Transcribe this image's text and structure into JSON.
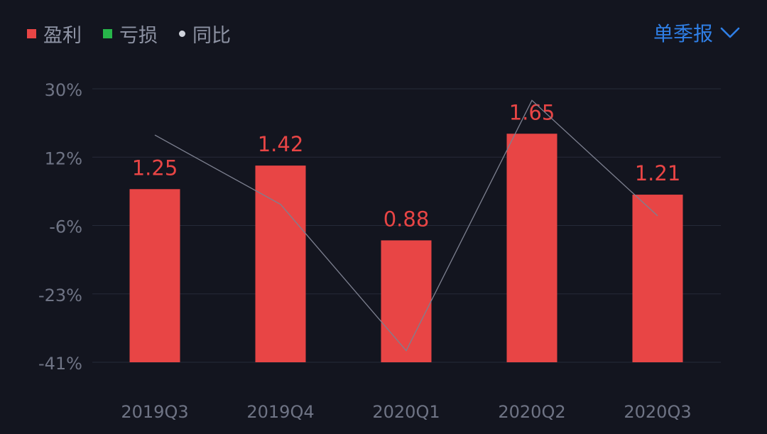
{
  "legend": {
    "items": [
      {
        "label": "盈利",
        "color": "#e84545",
        "shape": "square"
      },
      {
        "label": "亏损",
        "color": "#27b64a",
        "shape": "square"
      },
      {
        "label": "同比",
        "color": "#d0d3dc",
        "shape": "dot"
      }
    ]
  },
  "period_select": {
    "label": "单季报",
    "icon": "chevron-down-icon",
    "color": "#2f7fe6"
  },
  "colors": {
    "background": "#13151f",
    "grid": "#262a38",
    "axis_text": "#6f7485",
    "bar": "#e84545",
    "bar_label": "#e84545",
    "line": "#7d8090"
  },
  "chart_data": {
    "type": "bar",
    "categories": [
      "2019Q3",
      "2019Q4",
      "2020Q1",
      "2020Q2",
      "2020Q3"
    ],
    "series": [
      {
        "values": [
          1.25,
          1.42,
          0.88,
          1.65,
          1.21
        ],
        "value_labels": [
          "1.25",
          "1.42",
          "0.88",
          "1.65",
          "1.21"
        ]
      },
      {
        "type": "line",
        "values": [
          18,
          0,
          -38,
          27,
          -3
        ]
      }
    ],
    "y_ticks": [
      "30%",
      "12%",
      "-6%",
      "-23%",
      "-41%"
    ],
    "y_tick_values": [
      30,
      12,
      -6,
      -23,
      -41
    ],
    "ylim": [
      -41,
      30
    ],
    "grid": true,
    "legend_position": "top-left"
  }
}
